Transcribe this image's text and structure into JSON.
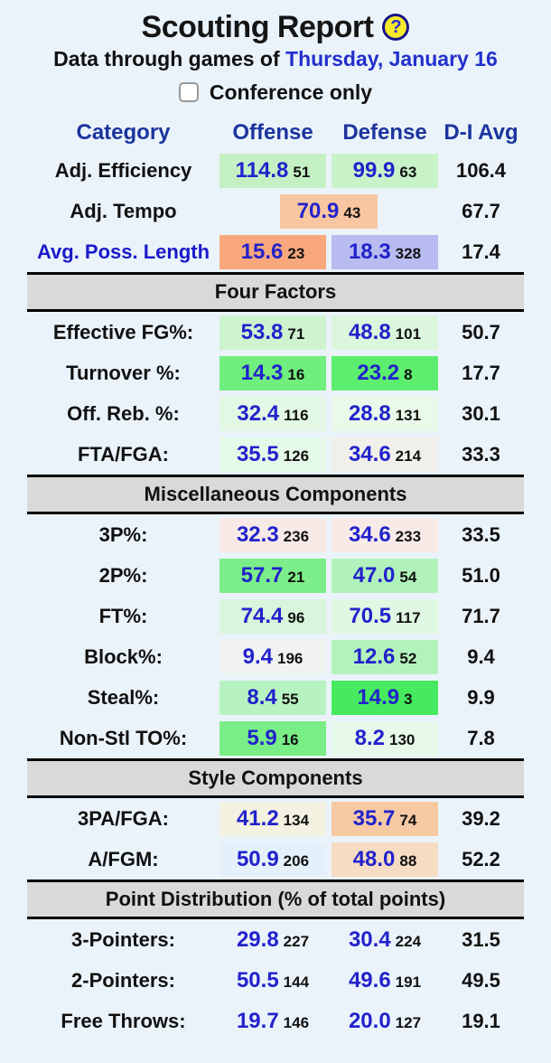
{
  "page": {
    "title": "Scouting Report",
    "help_icon": "?",
    "subtitle_prefix": "Data through games of ",
    "subtitle_date": "Thursday, January 16",
    "checkbox_label": "Conference only",
    "checkbox_checked": false
  },
  "colors": {
    "page_background": "#eaf3fa",
    "header_navy": "#1b349e",
    "value_blue": "#2222cc",
    "link_blue": "#2230cc",
    "section_bar_gray": "#d9d9d9",
    "help_icon_yellow": "#f5e92e"
  },
  "table": {
    "headers": [
      "Category",
      "Offense",
      "Defense",
      "D-I Avg"
    ],
    "sections": [
      {
        "title": "",
        "rows": [
          {
            "label": "Adj. Efficiency",
            "label_link": false,
            "offense": {
              "value": "114.8",
              "rank": "51",
              "bg": "#c4f1c4"
            },
            "defense": {
              "value": "99.9",
              "rank": "63",
              "bg": "#c8f2c8"
            },
            "avg": "106.4"
          },
          {
            "label": "Adj. Tempo",
            "label_link": false,
            "merged": {
              "value": "70.9",
              "rank": "43",
              "bg": "#f8c6a0"
            },
            "avg": "67.7"
          },
          {
            "label": "Avg. Poss. Length",
            "label_link": true,
            "offense": {
              "value": "15.6",
              "rank": "23",
              "bg": "#f8a87c"
            },
            "defense": {
              "value": "18.3",
              "rank": "328",
              "bg": "#b8bcf0"
            },
            "avg": "17.4"
          }
        ]
      },
      {
        "title": "Four Factors",
        "rows": [
          {
            "label": "Effective FG%:",
            "label_link": false,
            "offense": {
              "value": "53.8",
              "rank": "71",
              "bg": "#cdf3cf"
            },
            "defense": {
              "value": "48.8",
              "rank": "101",
              "bg": "#dcf6de"
            },
            "avg": "50.7"
          },
          {
            "label": "Turnover %:",
            "label_link": false,
            "offense": {
              "value": "14.3",
              "rank": "16",
              "bg": "#70ee7e"
            },
            "defense": {
              "value": "23.2",
              "rank": "8",
              "bg": "#5dee6f"
            },
            "avg": "17.7"
          },
          {
            "label": "Off. Reb. %:",
            "label_link": false,
            "offense": {
              "value": "32.4",
              "rank": "116",
              "bg": "#e2f8e4"
            },
            "defense": {
              "value": "28.8",
              "rank": "131",
              "bg": "#e9faea"
            },
            "avg": "30.1"
          },
          {
            "label": "FTA/FGA:",
            "label_link": false,
            "offense": {
              "value": "35.5",
              "rank": "126",
              "bg": "#e5f9e8"
            },
            "defense": {
              "value": "34.6",
              "rank": "214",
              "bg": "#f1efe9"
            },
            "avg": "33.3"
          }
        ]
      },
      {
        "title": "Miscellaneous Components",
        "rows": [
          {
            "label": "3P%:",
            "label_link": false,
            "offense": {
              "value": "32.3",
              "rank": "236",
              "bg": "#f7e9e6"
            },
            "defense": {
              "value": "34.6",
              "rank": "233",
              "bg": "#f7eae7"
            },
            "avg": "33.5"
          },
          {
            "label": "2P%:",
            "label_link": false,
            "offense": {
              "value": "57.7",
              "rank": "21",
              "bg": "#7cee89"
            },
            "defense": {
              "value": "47.0",
              "rank": "54",
              "bg": "#b1f2ba"
            },
            "avg": "51.0"
          },
          {
            "label": "FT%:",
            "label_link": false,
            "offense": {
              "value": "74.4",
              "rank": "96",
              "bg": "#d8f6db"
            },
            "defense": {
              "value": "70.5",
              "rank": "117",
              "bg": "#e0f7e2"
            },
            "avg": "71.7"
          },
          {
            "label": "Block%:",
            "label_link": false,
            "offense": {
              "value": "9.4",
              "rank": "196",
              "bg": "#f0f3f0"
            },
            "defense": {
              "value": "12.6",
              "rank": "52",
              "bg": "#b4f2bc"
            },
            "avg": "9.4"
          },
          {
            "label": "Steal%:",
            "label_link": false,
            "offense": {
              "value": "8.4",
              "rank": "55",
              "bg": "#b7f3c0"
            },
            "defense": {
              "value": "14.9",
              "rank": "3",
              "bg": "#47ea5e"
            },
            "avg": "9.9"
          },
          {
            "label": "Non-Stl TO%:",
            "label_link": false,
            "offense": {
              "value": "5.9",
              "rank": "16",
              "bg": "#79ee86"
            },
            "defense": {
              "value": "8.2",
              "rank": "130",
              "bg": "#e7f9e9"
            },
            "avg": "7.8"
          }
        ]
      },
      {
        "title": "Style Components",
        "rows": [
          {
            "label": "3PA/FGA:",
            "label_link": false,
            "offense": {
              "value": "41.2",
              "rank": "134",
              "bg": "#f3f1e0"
            },
            "defense": {
              "value": "35.7",
              "rank": "74",
              "bg": "#f6c9a3"
            },
            "avg": "39.2"
          },
          {
            "label": "A/FGM:",
            "label_link": false,
            "offense": {
              "value": "50.9",
              "rank": "206",
              "bg": "#e4f1fa"
            },
            "defense": {
              "value": "48.0",
              "rank": "88",
              "bg": "#f6dcc2"
            },
            "avg": "52.2"
          }
        ]
      },
      {
        "title": "Point Distribution (% of total points)",
        "rows": [
          {
            "label": "3-Pointers:",
            "label_link": false,
            "offense": {
              "value": "29.8",
              "rank": "227",
              "bg": ""
            },
            "defense": {
              "value": "30.4",
              "rank": "224",
              "bg": ""
            },
            "avg": "31.5"
          },
          {
            "label": "2-Pointers:",
            "label_link": false,
            "offense": {
              "value": "50.5",
              "rank": "144",
              "bg": ""
            },
            "defense": {
              "value": "49.6",
              "rank": "191",
              "bg": ""
            },
            "avg": "49.5"
          },
          {
            "label": "Free Throws:",
            "label_link": false,
            "offense": {
              "value": "19.7",
              "rank": "146",
              "bg": ""
            },
            "defense": {
              "value": "20.0",
              "rank": "127",
              "bg": ""
            },
            "avg": "19.1"
          }
        ]
      }
    ]
  }
}
